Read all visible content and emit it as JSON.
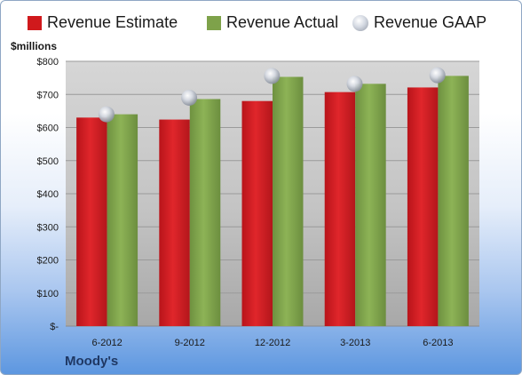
{
  "unit_label": "$millions",
  "company": "Moody's",
  "legend": [
    {
      "label": "Revenue Estimate",
      "color": "#d0191c",
      "marker": "square"
    },
    {
      "label": "Revenue Actual",
      "color": "#7ea24a",
      "marker": "square"
    },
    {
      "label": "Revenue GAAP",
      "color": "#c8ccd4",
      "marker": "circle"
    }
  ],
  "chart_data": {
    "type": "bar",
    "categories": [
      "6-2012",
      "9-2012",
      "12-2012",
      "3-2013",
      "6-2013"
    ],
    "series": [
      {
        "name": "Revenue Estimate",
        "type": "bar",
        "color": "#d0191c",
        "values": [
          630,
          624,
          680,
          707,
          721
        ]
      },
      {
        "name": "Revenue Actual",
        "type": "bar",
        "color": "#7ea24a",
        "values": [
          640,
          686,
          753,
          732,
          756
        ]
      },
      {
        "name": "Revenue GAAP",
        "type": "scatter",
        "color": "#c8ccd4",
        "values": [
          640,
          690,
          756,
          732,
          758
        ]
      }
    ],
    "yticks": [
      {
        "value": 0,
        "label": "$-"
      },
      {
        "value": 100,
        "label": "$100"
      },
      {
        "value": 200,
        "label": "$200"
      },
      {
        "value": 300,
        "label": "$300"
      },
      {
        "value": 400,
        "label": "$400"
      },
      {
        "value": 500,
        "label": "$500"
      },
      {
        "value": 600,
        "label": "$600"
      },
      {
        "value": 700,
        "label": "$700"
      },
      {
        "value": 800,
        "label": "$800"
      }
    ],
    "ylim": [
      0,
      800
    ],
    "grid": true,
    "legend_position": "top"
  }
}
